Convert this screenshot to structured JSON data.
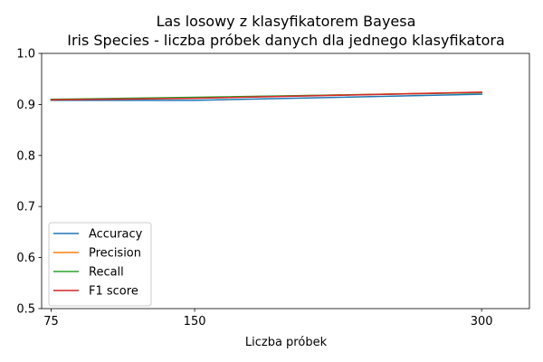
{
  "chart_data": {
    "type": "line",
    "title": "Las losowy z klasyfikatorem Bayesa",
    "subtitle": "Iris Species - liczba próbek danych dla jednego klasyfikatora",
    "xlabel": "Liczba próbek",
    "ylabel": "",
    "x": [
      75,
      150,
      300
    ],
    "xlim": [
      70,
      325
    ],
    "ylim": [
      0.5,
      1.0
    ],
    "x_ticks": [
      75,
      150,
      300
    ],
    "x_tick_labels": [
      "75",
      "150",
      "300"
    ],
    "y_ticks": [
      0.5,
      0.6,
      0.7,
      0.8,
      0.9,
      1.0
    ],
    "y_tick_labels": [
      "0.5",
      "0.6",
      "0.7",
      "0.8",
      "0.9",
      "1.0"
    ],
    "grid": false,
    "legend_position": "lower-left",
    "series": [
      {
        "name": "Accuracy",
        "color": "#1f77b4",
        "values": [
          0.908,
          0.908,
          0.92
        ]
      },
      {
        "name": "Precision",
        "color": "#ff7f0e",
        "values": [
          0.909,
          0.913,
          0.924
        ]
      },
      {
        "name": "Recall",
        "color": "#2ca02c",
        "values": [
          0.91,
          0.914,
          0.923
        ]
      },
      {
        "name": "F1 score",
        "color": "#d62728",
        "values": [
          0.909,
          0.912,
          0.924
        ]
      }
    ]
  }
}
